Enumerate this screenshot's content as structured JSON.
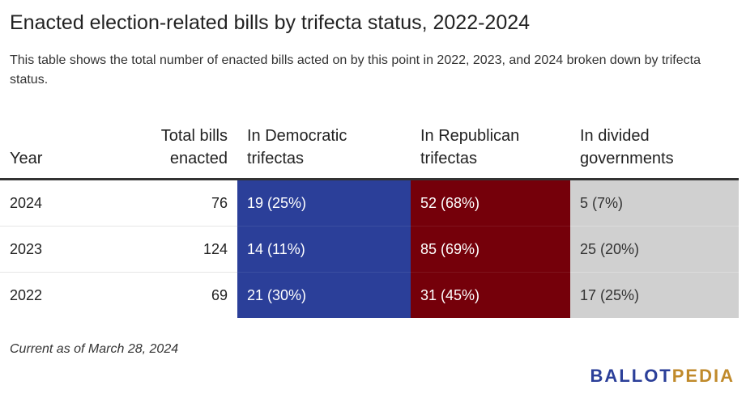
{
  "title": "Enacted election-related bills by trifecta status, 2022-2024",
  "subtitle": "This table shows the total number of enacted bills acted on by this point in 2022, 2023, and 2024 broken down by trifecta status.",
  "note": "Current as of March 28, 2024",
  "logo": {
    "part1": "BALLOT",
    "part2": "PEDIA"
  },
  "colors": {
    "democratic": "#2b3f99",
    "republican": "#75000a",
    "divided": "#d0d0d0",
    "logo_part1": "#2b3f99",
    "logo_part2": "#c08a2b"
  },
  "chart_data": {
    "type": "table",
    "columns": [
      {
        "line1": "",
        "line2": "Year"
      },
      {
        "line1": "Total bills",
        "line2": "enacted"
      },
      {
        "line1": "In Democratic",
        "line2": "trifectas"
      },
      {
        "line1": "In Republican",
        "line2": "trifectas"
      },
      {
        "line1": "In divided",
        "line2": "governments"
      }
    ],
    "rows": [
      {
        "year": "2024",
        "total": "76",
        "dem": "19 (25%)",
        "rep": "52 (68%)",
        "divided": "5 (7%)"
      },
      {
        "year": "2023",
        "total": "124",
        "dem": "14 (11%)",
        "rep": "85 (69%)",
        "divided": "25 (20%)"
      },
      {
        "year": "2022",
        "total": "69",
        "dem": "21 (30%)",
        "rep": "31 (45%)",
        "divided": "17 (25%)"
      }
    ]
  }
}
